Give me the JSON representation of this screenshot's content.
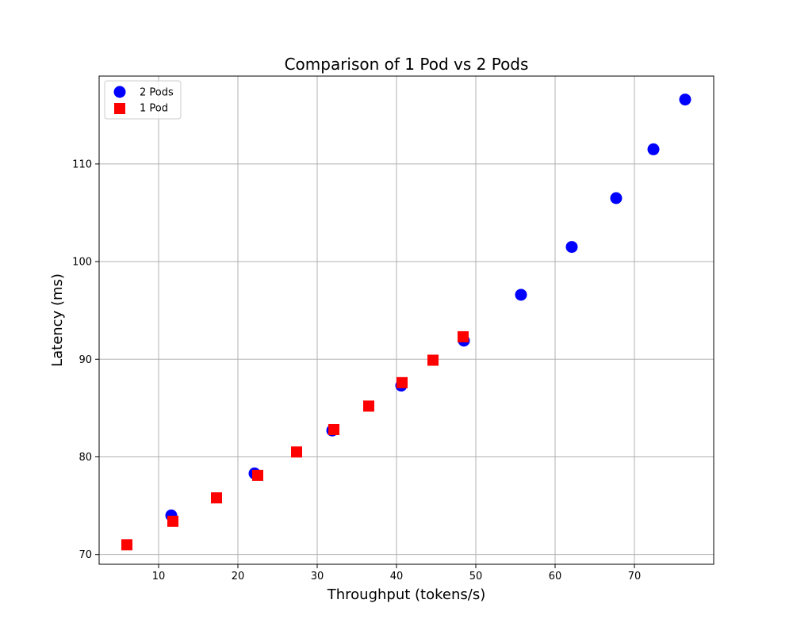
{
  "chart_data": {
    "type": "scatter",
    "title": "Comparison of 1 Pod vs 2 Pods",
    "xlabel": "Throughput (tokens/s)",
    "ylabel": "Latency (ms)",
    "xlim": [
      2.5,
      80
    ],
    "ylim": [
      69,
      119
    ],
    "xticks": [
      10,
      20,
      30,
      40,
      50,
      60,
      70
    ],
    "yticks": [
      70,
      80,
      90,
      100,
      110
    ],
    "grid": true,
    "legend_position": "top-left",
    "series": [
      {
        "name": "2 Pods",
        "marker": "circle",
        "color": "#0000ff",
        "points": [
          {
            "x": 11.6,
            "y": 74.0
          },
          {
            "x": 22.1,
            "y": 78.3
          },
          {
            "x": 31.9,
            "y": 82.7
          },
          {
            "x": 40.6,
            "y": 87.3
          },
          {
            "x": 48.5,
            "y": 91.9
          },
          {
            "x": 55.7,
            "y": 96.6
          },
          {
            "x": 62.1,
            "y": 101.5
          },
          {
            "x": 67.7,
            "y": 106.5
          },
          {
            "x": 72.4,
            "y": 111.5
          },
          {
            "x": 76.4,
            "y": 116.6
          }
        ]
      },
      {
        "name": "1 Pod",
        "marker": "square",
        "color": "#ff0000",
        "points": [
          {
            "x": 6.0,
            "y": 71.0
          },
          {
            "x": 11.8,
            "y": 73.4
          },
          {
            "x": 17.3,
            "y": 75.8
          },
          {
            "x": 22.5,
            "y": 78.1
          },
          {
            "x": 27.4,
            "y": 80.5
          },
          {
            "x": 32.1,
            "y": 82.8
          },
          {
            "x": 36.5,
            "y": 85.2
          },
          {
            "x": 40.7,
            "y": 87.6
          },
          {
            "x": 44.6,
            "y": 89.9
          },
          {
            "x": 48.4,
            "y": 92.3
          }
        ]
      }
    ]
  }
}
